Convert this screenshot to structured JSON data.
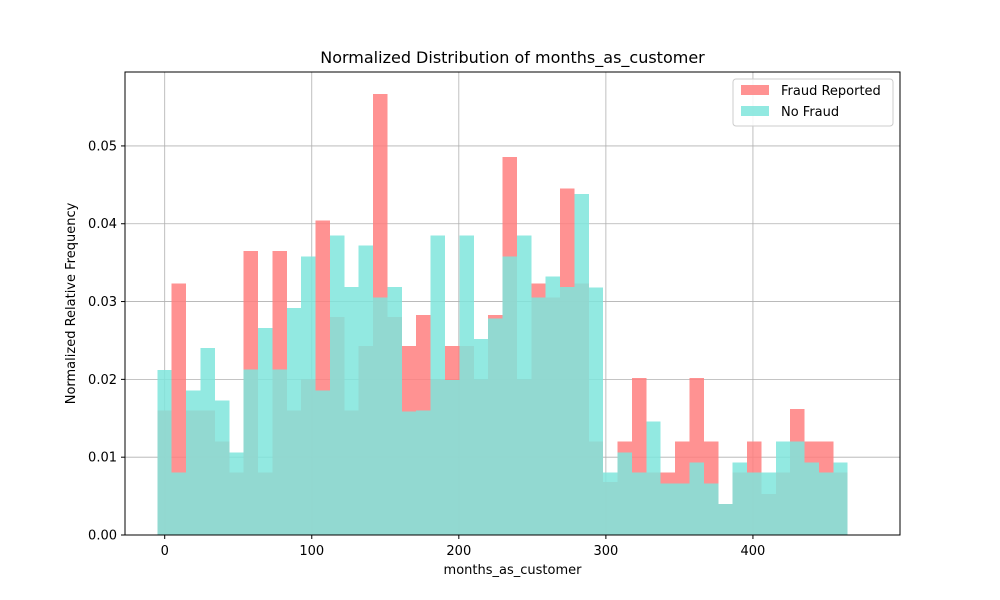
{
  "chart_data": {
    "type": "bar",
    "title": "Normalized Distribution of months_as_customer",
    "xlabel": "months_as_customer",
    "ylabel": "Normalized Relative Frequency",
    "xlim": [
      -27,
      500
    ],
    "ylim": [
      0,
      0.0595
    ],
    "xticks": [
      0,
      100,
      200,
      300,
      400
    ],
    "xtick_labels": [
      "0",
      "100",
      "200",
      "300",
      "400"
    ],
    "yticks": [
      0,
      0.01,
      0.02,
      0.03,
      0.04,
      0.05
    ],
    "ytick_labels": [
      "0.00",
      "0.01",
      "0.02",
      "0.03",
      "0.04",
      "0.05"
    ],
    "grid": true,
    "legend_position": "top-right",
    "bin_start": -5,
    "bin_width": 9.78,
    "series": [
      {
        "name": "Fraud Reported",
        "color": "#ff7f7f",
        "values": [
          0.016,
          0.0323,
          0.016,
          0.016,
          0.012,
          0.008,
          0.0365,
          0.008,
          0.0365,
          0.016,
          0.02,
          0.0404,
          0.028,
          0.016,
          0.0243,
          0.0567,
          0.028,
          0.0243,
          0.0283,
          0.02,
          0.0243,
          0.0243,
          0.02,
          0.0283,
          0.0486,
          0.02,
          0.0323,
          0.0305,
          0.0445,
          0.0323,
          0.012,
          0.0068,
          0.012,
          0.0202,
          0.008,
          0.008,
          0.012,
          0.0202,
          0.012,
          0.004,
          0.008,
          0.012,
          0.0053,
          0.008,
          0.0162,
          0.012,
          0.012,
          0.008
        ]
      },
      {
        "name": "No Fraud",
        "color": "#7fe5dc",
        "values": [
          0.0212,
          0.008,
          0.0186,
          0.024,
          0.0173,
          0.0106,
          0.0213,
          0.0266,
          0.0213,
          0.0292,
          0.0358,
          0.0186,
          0.0385,
          0.0319,
          0.0372,
          0.0305,
          0.0319,
          0.0159,
          0.016,
          0.0385,
          0.0199,
          0.0385,
          0.0252,
          0.0278,
          0.0358,
          0.0385,
          0.0305,
          0.0332,
          0.0319,
          0.0438,
          0.0318,
          0.008,
          0.0106,
          0.008,
          0.0146,
          0.0066,
          0.0066,
          0.0093,
          0.0066,
          0.004,
          0.0093,
          0.008,
          0.008,
          0.012,
          0.012,
          0.0093,
          0.008,
          0.0093
        ]
      }
    ]
  }
}
